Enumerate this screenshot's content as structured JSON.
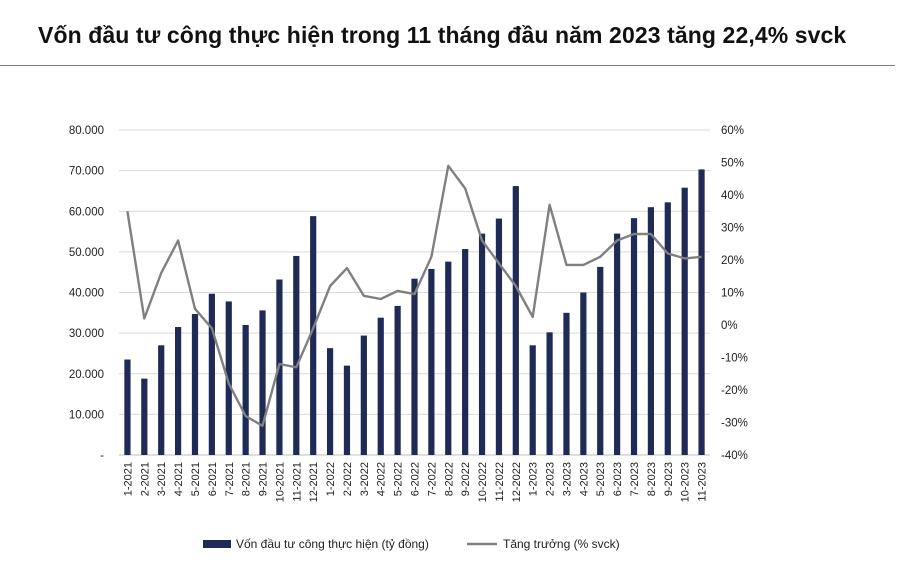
{
  "title": "Vốn đầu tư công thực hiện trong 11 tháng đầu năm 2023 tăng 22,4% svck",
  "chart_data": {
    "type": "bar",
    "categories": [
      "1-2021",
      "2-2021",
      "3-2021",
      "4-2021",
      "5-2021",
      "6-2021",
      "7-2021",
      "8-2021",
      "9-2021",
      "10-2021",
      "11-2021",
      "12-2021",
      "1-2022",
      "2-2022",
      "3-2022",
      "4-2022",
      "5-2022",
      "6-2022",
      "7-2022",
      "8-2022",
      "9-2022",
      "10-2022",
      "11-2022",
      "12-2022",
      "1-2023",
      "2-2023",
      "3-2023",
      "4-2023",
      "5-2023",
      "6-2023",
      "7-2023",
      "8-2023",
      "9-2023",
      "10-2023",
      "11-2023"
    ],
    "series": [
      {
        "name": "Vốn đầu tư công thực hiện (tỷ đồng)",
        "type": "bar",
        "axis": "left",
        "color": "#1f2a56",
        "values": [
          23500,
          18800,
          27000,
          31500,
          34700,
          39700,
          37800,
          32000,
          35600,
          43200,
          49000,
          58800,
          26300,
          22000,
          29400,
          33800,
          36700,
          43400,
          45800,
          47600,
          50700,
          54500,
          58200,
          66200,
          27000,
          30200,
          35000,
          40000,
          46300,
          54500,
          58300,
          61000,
          62200,
          65800,
          70300
        ]
      },
      {
        "name": "Tăng trưởng (% svck)",
        "type": "line",
        "axis": "right",
        "color": "#808080",
        "values": [
          35,
          2,
          16,
          26,
          5,
          -1,
          -18,
          -28,
          -31,
          -12,
          -13,
          -1,
          12,
          17.5,
          9,
          8,
          10.5,
          9.5,
          21,
          49,
          42,
          26,
          19,
          12,
          2.5,
          37,
          18.5,
          18.5,
          21,
          26,
          28,
          28,
          22,
          20.5,
          21
        ]
      }
    ],
    "left_axis": {
      "ylim": [
        0,
        80000
      ],
      "ticks": [
        "-",
        "10.000",
        "20.000",
        "30.000",
        "40.000",
        "50.000",
        "60.000",
        "70.000",
        "80.000"
      ]
    },
    "right_axis": {
      "ylim": [
        -40,
        60
      ],
      "ticks": [
        "-40%",
        "-30%",
        "-20%",
        "-10%",
        "0%",
        "10%",
        "20%",
        "30%",
        "40%",
        "50%",
        "60%"
      ]
    },
    "grid": true,
    "legend_position": "bottom"
  }
}
